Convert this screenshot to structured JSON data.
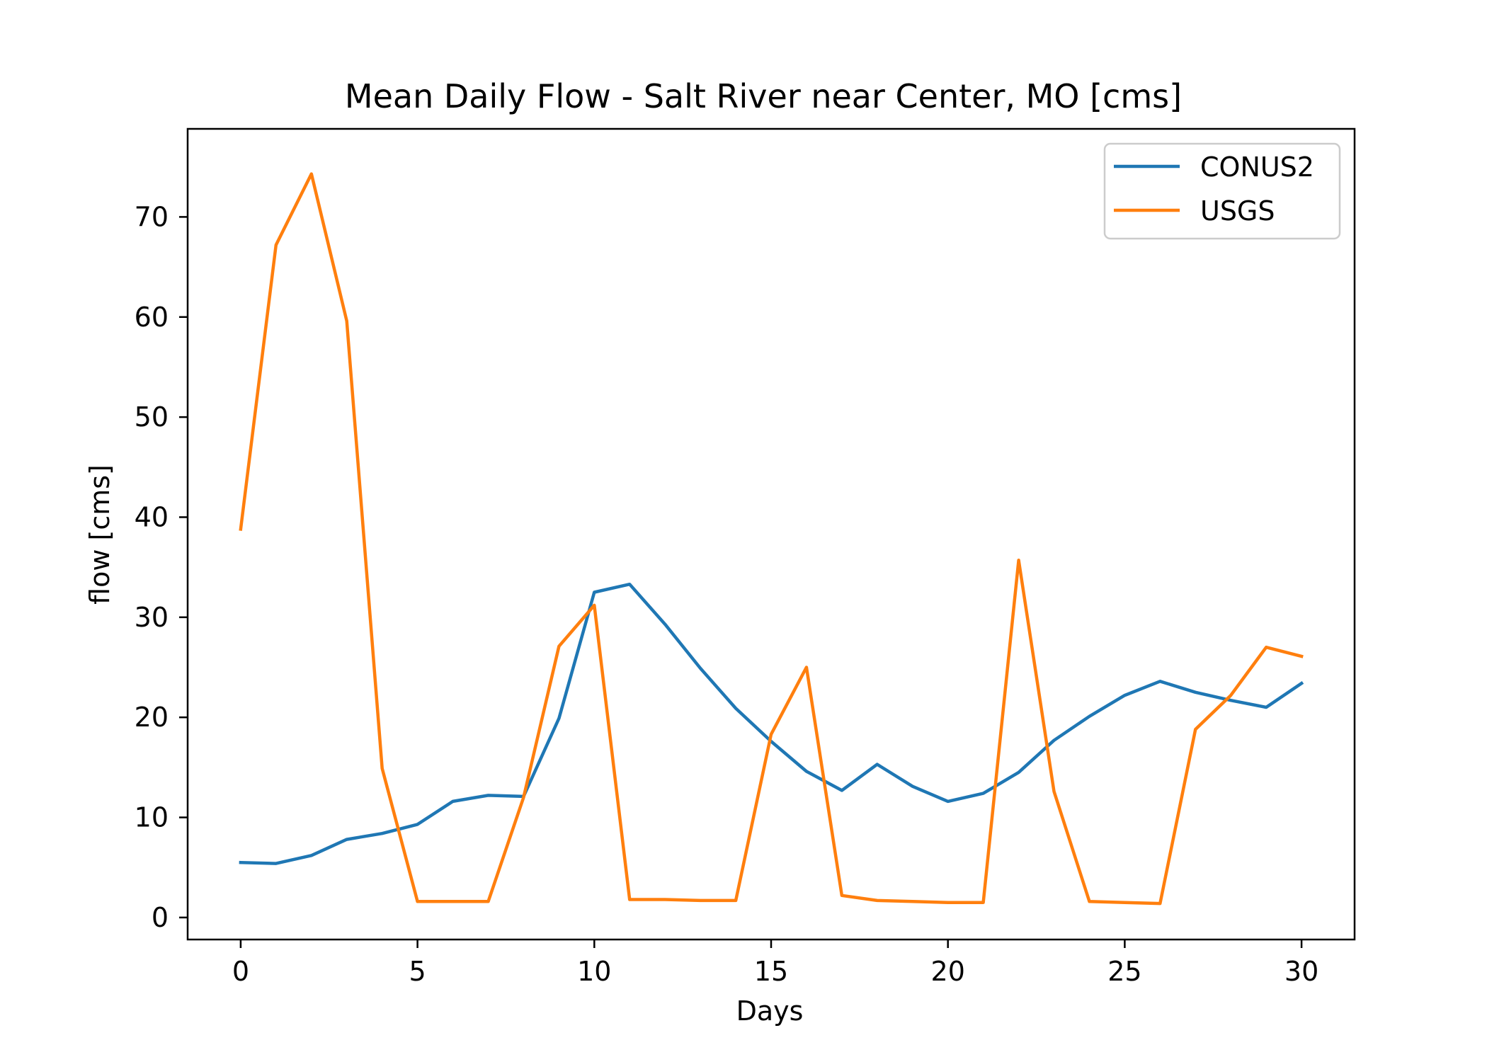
{
  "chart_data": {
    "type": "line",
    "title": "Mean Daily Flow - Salt River near Center, MO [cms]",
    "xlabel": "Days",
    "ylabel": "flow [cms]",
    "xlim": [
      -1.5,
      31.5
    ],
    "ylim": [
      -2.2,
      78.8
    ],
    "xticks": [
      0,
      5,
      10,
      15,
      20,
      25,
      30
    ],
    "yticks": [
      0,
      10,
      20,
      30,
      40,
      50,
      60,
      70
    ],
    "grid": false,
    "legend_position": "upper-right",
    "x": [
      0,
      1,
      2,
      3,
      4,
      5,
      6,
      7,
      8,
      9,
      10,
      11,
      12,
      13,
      14,
      15,
      16,
      17,
      18,
      19,
      20,
      21,
      22,
      23,
      24,
      25,
      26,
      27,
      28,
      29,
      30
    ],
    "series": [
      {
        "name": "CONUS2",
        "color": "#1f77b4",
        "values": [
          5.5,
          5.4,
          6.2,
          7.8,
          8.4,
          9.3,
          11.6,
          12.2,
          12.1,
          19.9,
          32.5,
          33.3,
          29.3,
          24.9,
          20.9,
          17.6,
          14.6,
          12.7,
          15.3,
          13.1,
          11.6,
          12.4,
          14.5,
          17.7,
          20.1,
          22.2,
          23.6,
          22.5,
          21.7,
          21.0,
          23.4
        ]
      },
      {
        "name": "USGS",
        "color": "#ff7f0e",
        "values": [
          38.8,
          67.2,
          74.3,
          59.6,
          14.9,
          1.6,
          1.6,
          1.6,
          12.0,
          27.1,
          31.2,
          1.8,
          1.8,
          1.7,
          1.7,
          18.3,
          25.0,
          2.2,
          1.7,
          1.6,
          1.5,
          1.5,
          35.7,
          12.6,
          1.6,
          1.5,
          1.4,
          18.8,
          22.2,
          27.0,
          26.1
        ]
      }
    ]
  }
}
